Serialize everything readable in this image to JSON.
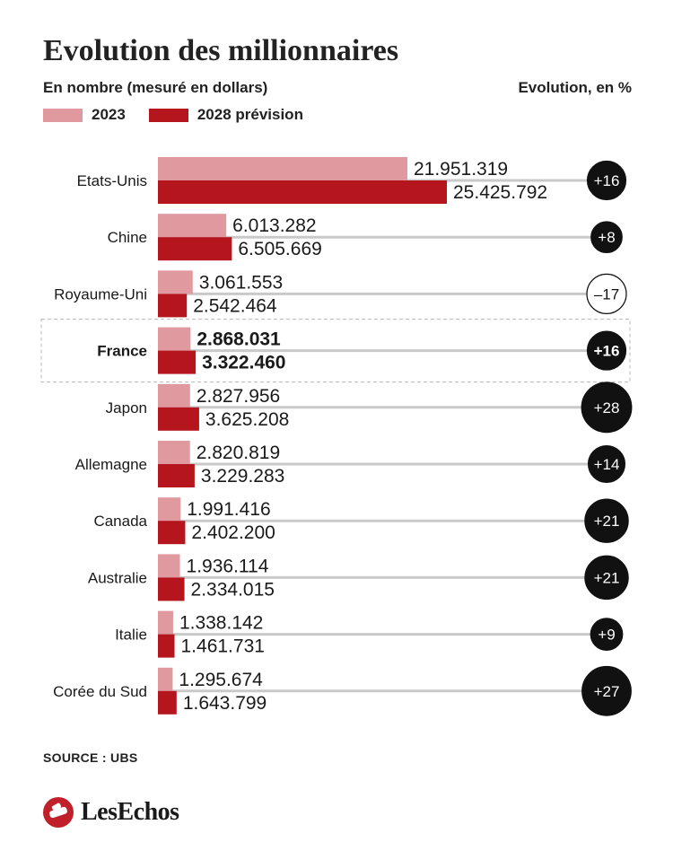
{
  "header": {
    "title": "Evolution des millionnaires",
    "subtitle": "En nombre (mesuré en dollars)",
    "evolution_label": "Evolution, en %"
  },
  "legend": [
    {
      "label": "2023",
      "color": "#e0999e"
    },
    {
      "label": "2028 prévision",
      "color": "#b5161d"
    }
  ],
  "chart_data": {
    "type": "bar",
    "orientation": "horizontal",
    "title": "Evolution des millionnaires",
    "subtitle": "En nombre (mesuré en dollars)",
    "categories": [
      "Etats-Unis",
      "Chine",
      "Royaume-Uni",
      "France",
      "Japon",
      "Allemagne",
      "Canada",
      "Australie",
      "Italie",
      "Corée du Sud"
    ],
    "series": [
      {
        "name": "2023",
        "color": "#e0999e",
        "values": [
          21951319,
          6013282,
          3061553,
          2868031,
          2827956,
          2820819,
          1991416,
          1936114,
          1338142,
          1295674
        ],
        "labels": [
          "21.951.319",
          "6.013.282",
          "3.061.553",
          "2.868.031",
          "2.827.956",
          "2.820.819",
          "1.991.416",
          "1.936.114",
          "1.338.142",
          "1.295.674"
        ]
      },
      {
        "name": "2028 prévision",
        "color": "#b5161d",
        "values": [
          25425792,
          6505669,
          2542464,
          3322460,
          3625208,
          3229283,
          2402200,
          2334015,
          1461731,
          1643799
        ],
        "labels": [
          "25.425.792",
          "6.505.669",
          "2.542.464",
          "3.322.460",
          "3.625.208",
          "3.229.283",
          "2.402.200",
          "2.334.015",
          "1.461.731",
          "1.643.799"
        ]
      }
    ],
    "evolution": [
      16,
      8,
      -17,
      16,
      28,
      14,
      21,
      21,
      9,
      27
    ],
    "evolution_labels": [
      "+16",
      "+8",
      "–17",
      "+16",
      "+28",
      "+14",
      "+21",
      "+21",
      "+9",
      "+27"
    ],
    "highlighted": "France"
  },
  "footer": {
    "source": "SOURCE : UBS",
    "logo_text": "LesEchos",
    "logo_icon": "les-echos-logo-icon"
  }
}
